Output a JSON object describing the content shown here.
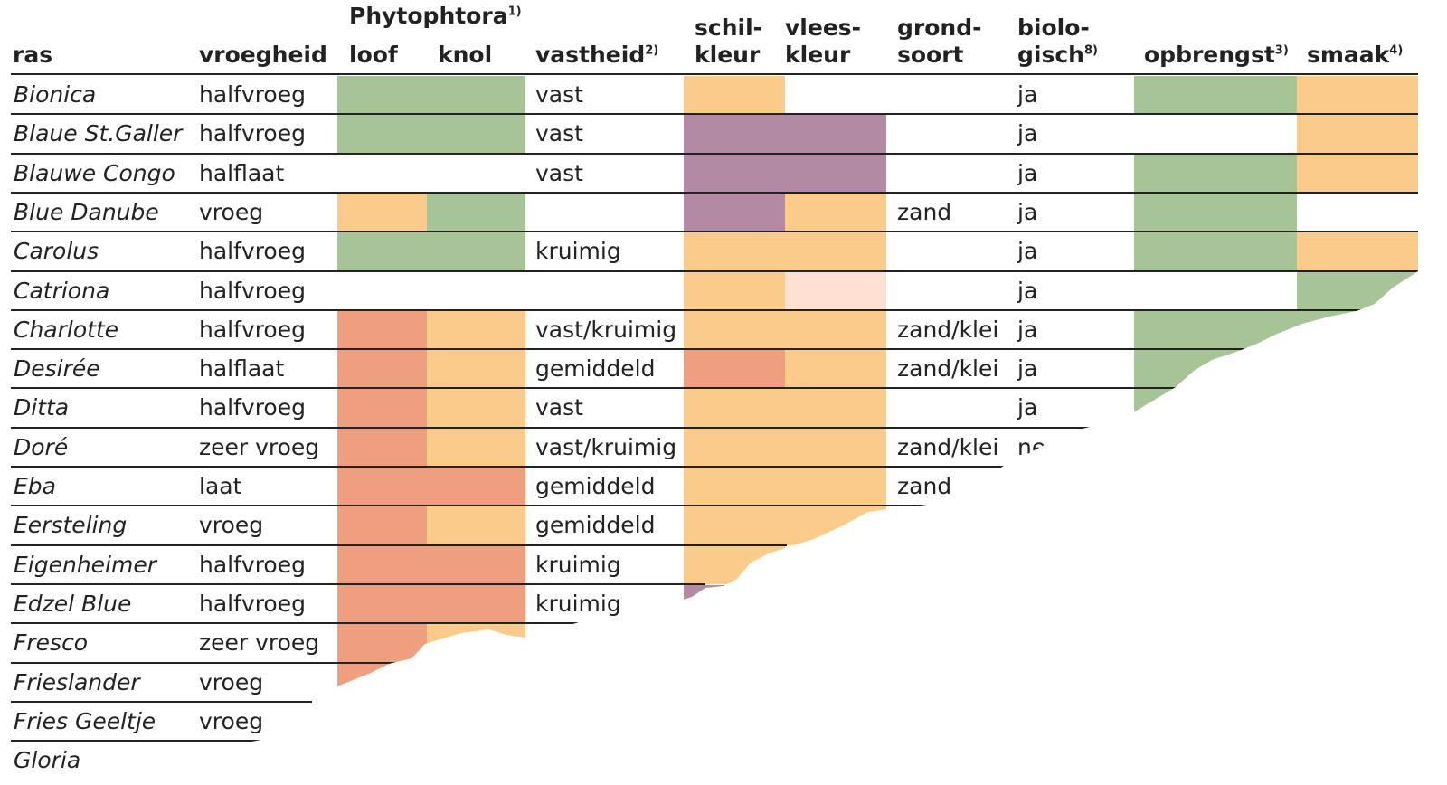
{
  "colors": {
    "green": "#a6c495",
    "yellow": "#fbcb8c",
    "red": "#ee9f80",
    "purple": "#b38aa4",
    "pink": "#fde0cf"
  },
  "headers": {
    "ras": "ras",
    "vroegheid": "vroegheid",
    "phytophtora": "Phytophtora",
    "phytophtora_sup": "1)",
    "loof": "loof",
    "knol": "knol",
    "vastheid": "vastheid",
    "vastheid_sup": "2)",
    "schil_1": "schil-",
    "schil_2": "kleur",
    "vlees_1": "vlees-",
    "vlees_2": "kleur",
    "grond_1": "grond-",
    "grond_2": "soort",
    "bio_1": "biolo-",
    "bio_2": "gisch",
    "bio_sup": "8)",
    "opbrengst": "opbrengst",
    "opbrengst_sup": "3)",
    "smaak": "smaak",
    "smaak_sup": "4)"
  },
  "rows": [
    {
      "ras": "Bionica",
      "vroegheid": "halfvroeg",
      "loof": "green",
      "knol": "green",
      "vastheid": "vast",
      "schil": "yellow",
      "vlees": "",
      "grond": "",
      "bio": "ja",
      "opbrengst": "green",
      "smaak": "yellow"
    },
    {
      "ras": "Blaue St.Galler",
      "vroegheid": "halfvroeg",
      "loof": "green",
      "knol": "green",
      "vastheid": "vast",
      "schil": "purple",
      "vlees": "purple",
      "grond": "",
      "bio": "ja",
      "opbrengst": "",
      "smaak": "yellow"
    },
    {
      "ras": "Blauwe Congo",
      "vroegheid": "halflaat",
      "loof": "",
      "knol": "",
      "vastheid": "vast",
      "schil": "purple",
      "vlees": "purple",
      "grond": "",
      "bio": "ja",
      "opbrengst": "green",
      "smaak": "yellow"
    },
    {
      "ras": "Blue Danube",
      "vroegheid": "vroeg",
      "loof": "yellow",
      "knol": "green",
      "vastheid": "",
      "schil": "purple",
      "vlees": "yellow",
      "grond": "zand",
      "bio": "ja",
      "opbrengst": "green",
      "smaak": ""
    },
    {
      "ras": "Carolus",
      "vroegheid": "halfvroeg",
      "loof": "green",
      "knol": "green",
      "vastheid": "kruimig",
      "schil": "yellow",
      "vlees": "yellow",
      "grond": "",
      "bio": "ja",
      "opbrengst": "green",
      "smaak": "yellow"
    },
    {
      "ras": "Catriona",
      "vroegheid": "halfvroeg",
      "loof": "",
      "knol": "",
      "vastheid": "",
      "schil": "yellow",
      "vlees": "pink",
      "grond": "",
      "bio": "ja",
      "opbrengst": "",
      "smaak": "green"
    },
    {
      "ras": "Charlotte",
      "vroegheid": "halfvroeg",
      "loof": "red",
      "knol": "yellow",
      "vastheid": "vast/kruimig",
      "schil": "yellow",
      "vlees": "yellow",
      "grond": "zand/klei",
      "bio": "ja",
      "opbrengst": "green",
      "smaak": "green"
    },
    {
      "ras": "Desirée",
      "vroegheid": "halflaat",
      "loof": "red",
      "knol": "yellow",
      "vastheid": "gemiddeld",
      "schil": "red",
      "vlees": "yellow",
      "grond": "zand/klei",
      "bio": "ja",
      "opbrengst": "green",
      "smaak": ""
    },
    {
      "ras": "Ditta",
      "vroegheid": "halfvroeg",
      "loof": "red",
      "knol": "yellow",
      "vastheid": "vast",
      "schil": "yellow",
      "vlees": "yellow",
      "grond": "",
      "bio": "ja",
      "opbrengst": "green",
      "smaak": ""
    },
    {
      "ras": "Doré",
      "vroegheid": "zeer vroeg",
      "loof": "red",
      "knol": "yellow",
      "vastheid": "vast/kruimig",
      "schil": "yellow",
      "vlees": "yellow",
      "grond": "zand/klei",
      "bio": "nee",
      "opbrengst": "",
      "smaak": ""
    },
    {
      "ras": "Eba",
      "vroegheid": "laat",
      "loof": "red",
      "knol": "red",
      "vastheid": "gemiddeld",
      "schil": "yellow",
      "vlees": "yellow",
      "grond": "zand",
      "bio": "",
      "opbrengst": "",
      "smaak": ""
    },
    {
      "ras": "Eersteling",
      "vroegheid": "vroeg",
      "loof": "red",
      "knol": "yellow",
      "vastheid": "gemiddeld",
      "schil": "yellow",
      "vlees": "yellow",
      "grond": "",
      "bio": "",
      "opbrengst": "",
      "smaak": ""
    },
    {
      "ras": "Eigenheimer",
      "vroegheid": "halfvroeg",
      "loof": "red",
      "knol": "red",
      "vastheid": "kruimig",
      "schil": "yellow",
      "vlees": "",
      "grond": "",
      "bio": "",
      "opbrengst": "",
      "smaak": ""
    },
    {
      "ras": "Edzel Blue",
      "vroegheid": "halfvroeg",
      "loof": "red",
      "knol": "red",
      "vastheid": "kruimig",
      "schil": "purple",
      "vlees": "",
      "grond": "",
      "bio": "",
      "opbrengst": "",
      "smaak": ""
    },
    {
      "ras": "Fresco",
      "vroegheid": "zeer vroeg",
      "loof": "red",
      "knol": "yellow",
      "vastheid": "",
      "schil": "",
      "vlees": "",
      "grond": "",
      "bio": "",
      "opbrengst": "",
      "smaak": ""
    },
    {
      "ras": "Frieslander",
      "vroegheid": "vroeg",
      "loof": "red",
      "knol": "",
      "vastheid": "",
      "schil": "",
      "vlees": "",
      "grond": "",
      "bio": "",
      "opbrengst": "",
      "smaak": ""
    },
    {
      "ras": "Fries Geeltje",
      "vroegheid": "vroeg",
      "loof": "",
      "knol": "",
      "vastheid": "",
      "schil": "",
      "vlees": "",
      "grond": "",
      "bio": "",
      "opbrengst": "",
      "smaak": ""
    },
    {
      "ras": "Gloria",
      "vroegheid": "",
      "loof": "",
      "knol": "",
      "vastheid": "",
      "schil": "",
      "vlees": "",
      "grond": "",
      "bio": "",
      "opbrengst": "",
      "smaak": ""
    }
  ]
}
